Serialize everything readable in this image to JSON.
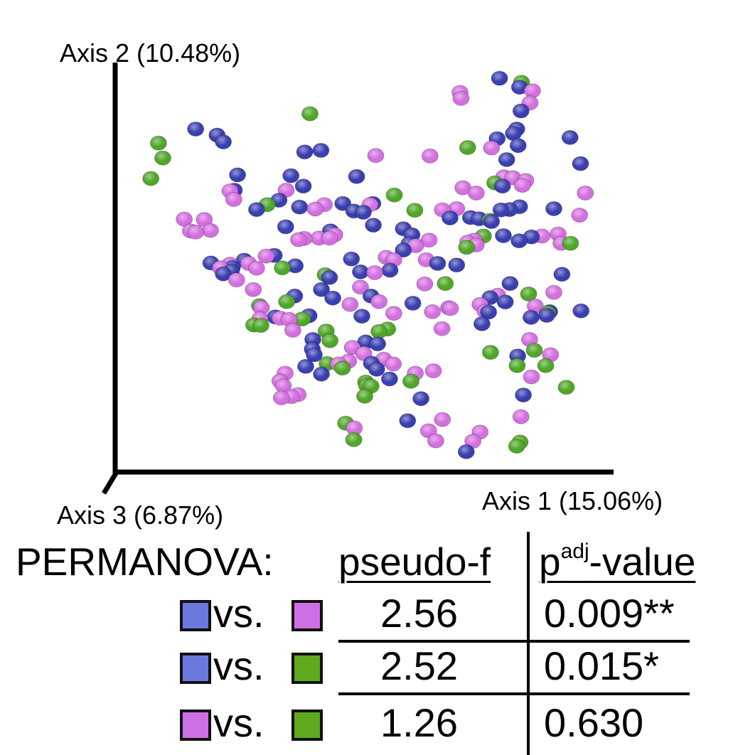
{
  "colors": {
    "blue": "#3a3fb0",
    "magenta": "#d46fe0",
    "green": "#4fa628",
    "swatch_blue": "#6b78e0",
    "swatch_magenta": "#cf6fe6",
    "swatch_green": "#5faa1c"
  },
  "chart_data": {
    "type": "scatter",
    "projection": "3d-pcoa",
    "axes": {
      "axis1_label": "Axis 1 (15.06%)",
      "axis2_label": "Axis 2 (10.48%)",
      "axis3_label": "Axis 3 (6.87%)"
    },
    "xlim": [
      0,
      100
    ],
    "ylim": [
      0,
      100
    ],
    "grid": false,
    "series": [
      {
        "color": "blue",
        "points": [
          [
            79.5,
            97.5
          ],
          [
            83.7,
            95.3
          ],
          [
            84,
            89.4
          ],
          [
            82.4,
            83.8
          ],
          [
            83.1,
            84.9
          ],
          [
            15.7,
            84.9
          ],
          [
            20.2,
            83.4
          ],
          [
            21.5,
            81.7
          ],
          [
            38.6,
            79.2
          ],
          [
            42,
            79.6
          ],
          [
            49.5,
            73.1
          ],
          [
            79,
            82.5
          ],
          [
            83.4,
            80.8
          ],
          [
            81,
            77.3
          ],
          [
            94.3,
            82.8
          ],
          [
            96.5,
            76.3
          ],
          [
            35.7,
            73.3
          ],
          [
            38.3,
            70.7
          ],
          [
            33.2,
            67.2
          ],
          [
            24.5,
            73.5
          ],
          [
            23.8,
            69.7
          ],
          [
            28.5,
            64.9
          ],
          [
            37.5,
            65.5
          ],
          [
            46.6,
            66.4
          ],
          [
            48.9,
            64.5
          ],
          [
            52.9,
            66.4
          ],
          [
            50.9,
            64.2
          ],
          [
            69.1,
            62.8
          ],
          [
            73.4,
            62.9
          ],
          [
            75.2,
            62.6
          ],
          [
            77.8,
            61.9
          ],
          [
            79.8,
            64.8
          ],
          [
            81.6,
            64.9
          ],
          [
            83.7,
            65.6
          ],
          [
            90.9,
            65.1
          ],
          [
            80.1,
            70.7
          ],
          [
            53,
            61
          ],
          [
            59.3,
            60.1
          ],
          [
            61.1,
            58.6
          ],
          [
            60.5,
            56.4
          ],
          [
            59.3,
            54.8
          ],
          [
            34.6,
            60.6
          ],
          [
            44,
            59.6
          ],
          [
            25.9,
            52.3
          ],
          [
            32.2,
            53.5
          ],
          [
            36.6,
            50.9
          ],
          [
            23.4,
            50.5
          ],
          [
            21.5,
            48.9
          ],
          [
            23.2,
            49.6
          ],
          [
            18.9,
            51.6
          ],
          [
            48.4,
            52.6
          ],
          [
            50.3,
            49.4
          ],
          [
            56.5,
            49.8
          ],
          [
            66.5,
            51.5
          ],
          [
            70.5,
            51.1
          ],
          [
            43.8,
            48
          ],
          [
            42.1,
            45
          ],
          [
            44.5,
            42.9
          ],
          [
            52.5,
            43.4
          ],
          [
            81.7,
            46.5
          ],
          [
            80.3,
            58.4
          ],
          [
            83.6,
            57.1
          ],
          [
            86.2,
            58.1
          ],
          [
            36.5,
            43.4
          ],
          [
            32.4,
            38.2
          ],
          [
            39.5,
            38.5
          ],
          [
            40.3,
            32.6
          ],
          [
            40.2,
            30.2
          ],
          [
            50.6,
            38.4
          ],
          [
            51.4,
            32
          ],
          [
            53.9,
            31.5
          ],
          [
            61.3,
            41.6
          ],
          [
            77.5,
            43
          ],
          [
            77.2,
            39.4
          ],
          [
            80.7,
            41.9
          ],
          [
            92.6,
            48.8
          ],
          [
            89.4,
            38.6
          ],
          [
            90,
            39.5
          ],
          [
            96.6,
            39.7
          ],
          [
            86.1,
            38.1
          ],
          [
            75.8,
            36.5
          ],
          [
            40.6,
            28.8
          ],
          [
            38.8,
            25.9
          ],
          [
            42.1,
            24
          ],
          [
            52.6,
            26.7
          ],
          [
            53.7,
            25.2
          ],
          [
            56.4,
            22.8
          ],
          [
            63,
            17.9
          ],
          [
            72.5,
            4.7
          ],
          [
            60.2,
            12.4
          ],
          [
            84.5,
            18.8
          ],
          [
            83.3,
            28.5
          ]
        ]
      },
      {
        "color": "magenta",
        "points": [
          [
            85.9,
            91.4
          ],
          [
            86.4,
            94.4
          ],
          [
            71.2,
            94
          ],
          [
            71.4,
            92.5
          ],
          [
            53.5,
            78.3
          ],
          [
            64.9,
            78.2
          ],
          [
            77.8,
            80.2
          ],
          [
            82.3,
            72.8
          ],
          [
            52.3,
            66.1
          ],
          [
            74.6,
            69
          ],
          [
            71.8,
            70.3
          ],
          [
            67.5,
            64.8
          ],
          [
            70.5,
            65.1
          ],
          [
            80.4,
            73
          ],
          [
            84.3,
            70.9
          ],
          [
            85,
            72.1
          ],
          [
            97.5,
            69
          ],
          [
            96.3,
            63.5
          ],
          [
            91.8,
            58.8
          ],
          [
            88.4,
            58.3
          ],
          [
            92.4,
            56.5
          ],
          [
            13.3,
            62.5
          ],
          [
            14.6,
            59.6
          ],
          [
            15.7,
            59.3
          ],
          [
            18.8,
            59.7
          ],
          [
            17.5,
            62.4
          ],
          [
            22.9,
            69.5
          ],
          [
            23.7,
            67.4
          ],
          [
            34.7,
            69.7
          ],
          [
            40.8,
            65
          ],
          [
            42.7,
            66.1
          ],
          [
            37.3,
            57.4
          ],
          [
            38.5,
            57.7
          ],
          [
            41.6,
            57.8
          ],
          [
            43.8,
            57.8
          ],
          [
            44.9,
            58.6
          ],
          [
            20.9,
            50.4
          ],
          [
            22.9,
            51.3
          ],
          [
            26.8,
            51.5
          ],
          [
            28.5,
            50.3
          ],
          [
            30.5,
            53.3
          ],
          [
            27.8,
            45
          ],
          [
            24.3,
            47.4
          ],
          [
            29.5,
            40.5
          ],
          [
            29.2,
            37.8
          ],
          [
            33.4,
            37.9
          ],
          [
            35.3,
            37.6
          ],
          [
            36.1,
            34.9
          ],
          [
            55.7,
            53
          ],
          [
            57.3,
            52.4
          ],
          [
            64.1,
            52.4
          ],
          [
            61.9,
            55.9
          ],
          [
            64.7,
            57.3
          ],
          [
            72.8,
            56.8
          ],
          [
            74.2,
            57.3
          ],
          [
            74.6,
            56.1
          ],
          [
            53.3,
            49.2
          ],
          [
            50.3,
            45.6
          ],
          [
            48.1,
            41.3
          ],
          [
            54.2,
            42
          ],
          [
            57.3,
            39.1
          ],
          [
            63.8,
            46.4
          ],
          [
            65.4,
            39.5
          ],
          [
            69.2,
            40.3
          ],
          [
            68.8,
            40.5
          ],
          [
            67.4,
            35.3
          ],
          [
            75.4,
            41.3
          ],
          [
            79.1,
            43.6
          ],
          [
            76.5,
            39.6
          ],
          [
            87,
            40.9
          ],
          [
            90.9,
            44.3
          ],
          [
            85.8,
            32.6
          ],
          [
            90.2,
            28.8
          ],
          [
            45.7,
            26.5
          ],
          [
            47.8,
            27.2
          ],
          [
            51,
            29.1
          ],
          [
            48.6,
            30.6
          ],
          [
            55.2,
            27.7
          ],
          [
            57.2,
            26.5
          ],
          [
            61.8,
            24.2
          ],
          [
            65.6,
            24.8
          ],
          [
            34.5,
            24.2
          ],
          [
            33.4,
            22.3
          ],
          [
            33.7,
            18.1
          ],
          [
            34.1,
            21.1
          ],
          [
            35.8,
            18.4
          ],
          [
            37.2,
            18.9
          ],
          [
            49,
            10.6
          ],
          [
            64.6,
            9.9
          ],
          [
            66.1,
            7.4
          ],
          [
            67.5,
            12.7
          ],
          [
            73.9,
            7.3
          ],
          [
            86.2,
            23.3
          ],
          [
            75.4,
            9.6
          ],
          [
            84,
            13.4
          ]
        ]
      },
      {
        "color": "green",
        "points": [
          [
            84.1,
            96.5
          ],
          [
            39.7,
            88.7
          ],
          [
            7.9,
            81.4
          ],
          [
            8.8,
            77.7
          ],
          [
            6.3,
            72.6
          ],
          [
            30.7,
            66.1
          ],
          [
            61.7,
            64.7
          ],
          [
            72.8,
            80.3
          ],
          [
            78.5,
            71.5
          ],
          [
            57.4,
            68.5
          ],
          [
            77.5,
            62.2
          ],
          [
            76.1,
            58.3
          ],
          [
            94.4,
            56.5
          ],
          [
            33.9,
            50.4
          ],
          [
            42.9,
            48.7
          ],
          [
            29.1,
            41
          ],
          [
            34.8,
            42
          ],
          [
            27.9,
            36.2
          ],
          [
            29.4,
            36.1
          ],
          [
            38.1,
            37.7
          ],
          [
            43.1,
            34.7
          ],
          [
            43.9,
            32.3
          ],
          [
            68.1,
            46.5
          ],
          [
            72.6,
            55.5
          ],
          [
            85.6,
            43.9
          ],
          [
            89.6,
            39.2
          ],
          [
            86.8,
            29.9
          ],
          [
            93.5,
            20.7
          ],
          [
            56,
            35.2
          ],
          [
            54.2,
            34.6
          ],
          [
            77.6,
            29.4
          ],
          [
            83.2,
            26.1
          ],
          [
            89.2,
            26.1
          ],
          [
            43.3,
            26.6
          ],
          [
            46.5,
            25.5
          ],
          [
            51.4,
            22
          ],
          [
            51.2,
            18.5
          ],
          [
            51.6,
            21.2
          ],
          [
            52.5,
            21
          ],
          [
            60.9,
            22.2
          ],
          [
            47.2,
            11.8
          ],
          [
            48.9,
            7.7
          ],
          [
            83.1,
            6.1
          ],
          [
            83.8,
            7.1
          ]
        ]
      }
    ]
  },
  "permanova": {
    "title": "PERMANOVA:",
    "col_f": "pseudo-f",
    "col_p_main": "p",
    "col_p_sup": "adj",
    "col_p_tail": "-value",
    "rows": [
      {
        "a": "swatch_blue",
        "b": "swatch_magenta",
        "vs": "vs.",
        "f": "2.56",
        "p": "0.009**"
      },
      {
        "a": "swatch_blue",
        "b": "swatch_green",
        "vs": "vs.",
        "f": "2.52",
        "p": "0.015*"
      },
      {
        "a": "swatch_magenta",
        "b": "swatch_green",
        "vs": "vs.",
        "f": "1.26",
        "p": "0.630"
      }
    ]
  }
}
